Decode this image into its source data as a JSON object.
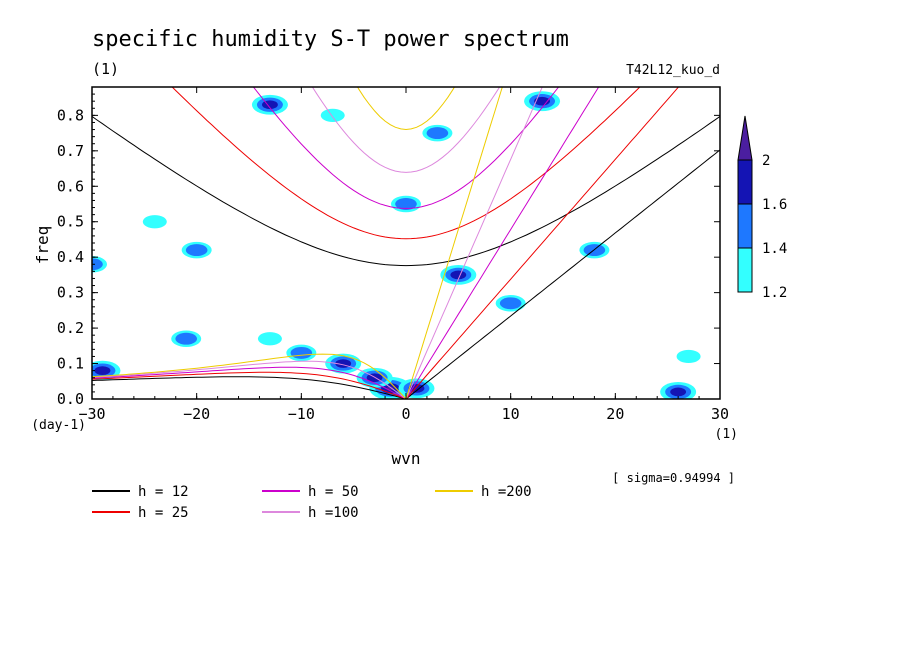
{
  "chart_data": {
    "type": "heatmap",
    "title": "specific humidity S-T power spectrum",
    "subtitle_left": "(1)",
    "subtitle_right": "T42L12_kuo_d",
    "xlabel": "wvn",
    "ylabel": "freq",
    "x_unit": "(1)",
    "y_unit": "(day-1)",
    "xlim": [
      -30,
      30
    ],
    "ylim": [
      0,
      0.88
    ],
    "x_ticks": [
      -30,
      -20,
      -10,
      0,
      10,
      20,
      30
    ],
    "y_ticks": [
      0.0,
      0.1,
      0.2,
      0.3,
      0.4,
      0.5,
      0.6,
      0.7,
      0.8
    ],
    "sigma_note": "[ sigma=0.94994 ]",
    "colorbar": {
      "levels": [
        1.2,
        1.4,
        1.6,
        2
      ],
      "labels": [
        "1.2",
        "1.4",
        "1.6",
        "2"
      ],
      "colors": [
        "#33ffff",
        "#1e78ff",
        "#1414b4",
        "#4b1ea0"
      ]
    },
    "dispersion_curves": [
      {
        "name": "h = 12",
        "h": 12,
        "color": "#000000"
      },
      {
        "name": "h = 25",
        "h": 25,
        "color": "#ee0000"
      },
      {
        "name": "h = 50",
        "h": 50,
        "color": "#cc00cc"
      },
      {
        "name": "h =100",
        "h": 100,
        "color": "#dd88dd"
      },
      {
        "name": "h =200",
        "h": 200,
        "color": "#eecc00"
      }
    ],
    "significant_regions": [
      {
        "wvn": -1.5,
        "freq": 0.03,
        "level": 2
      },
      {
        "wvn": -3,
        "freq": 0.06,
        "level": 1.6
      },
      {
        "wvn": -6,
        "freq": 0.1,
        "level": 1.6
      },
      {
        "wvn": -10,
        "freq": 0.13,
        "level": 1.4
      },
      {
        "wvn": -13,
        "freq": 0.17,
        "level": 1.2
      },
      {
        "wvn": -29,
        "freq": 0.08,
        "level": 1.6
      },
      {
        "wvn": 1,
        "freq": 0.03,
        "level": 1.6
      },
      {
        "wvn": 5,
        "freq": 0.35,
        "level": 1.6
      },
      {
        "wvn": 10,
        "freq": 0.27,
        "level": 1.4
      },
      {
        "wvn": -13,
        "freq": 0.83,
        "level": 1.6
      },
      {
        "wvn": 13,
        "freq": 0.84,
        "level": 1.6
      },
      {
        "wvn": 26,
        "freq": 0.02,
        "level": 1.6
      },
      {
        "wvn": 18,
        "freq": 0.42,
        "level": 1.4
      },
      {
        "wvn": -20,
        "freq": 0.42,
        "level": 1.4
      },
      {
        "wvn": -30,
        "freq": 0.38,
        "level": 1.4
      },
      {
        "wvn": 0,
        "freq": 0.55,
        "level": 1.4
      },
      {
        "wvn": 3,
        "freq": 0.75,
        "level": 1.4
      },
      {
        "wvn": -21,
        "freq": 0.17,
        "level": 1.4
      },
      {
        "wvn": -24,
        "freq": 0.5,
        "level": 1.2
      },
      {
        "wvn": -7,
        "freq": 0.8,
        "level": 1.2
      },
      {
        "wvn": 27,
        "freq": 0.12,
        "level": 1.2
      }
    ]
  }
}
